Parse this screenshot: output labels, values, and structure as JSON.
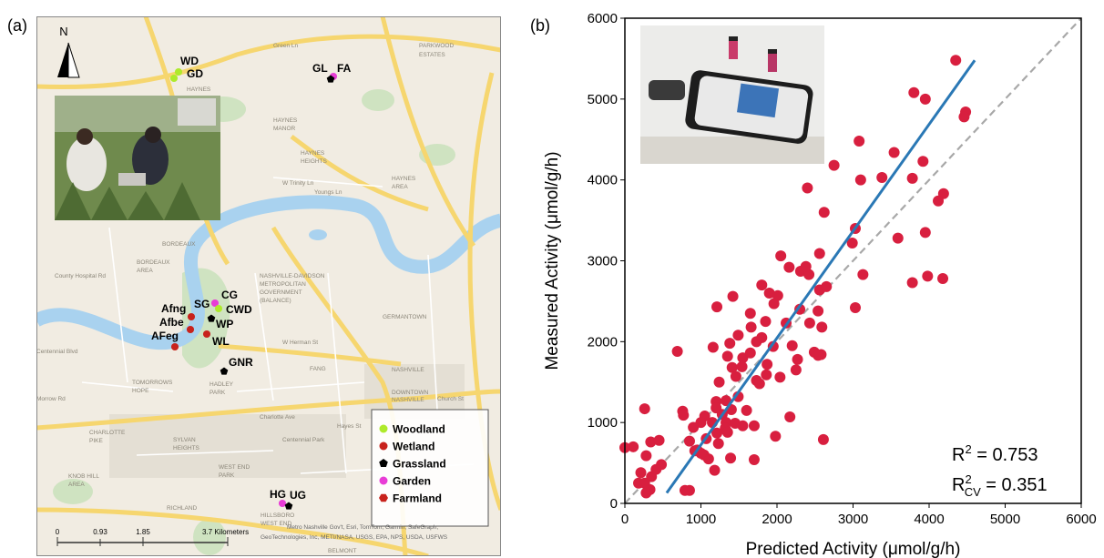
{
  "map": {
    "panel_label": "(a)",
    "north": "N",
    "sites": [
      "WD",
      "GD",
      "GL",
      "FA",
      "Afng",
      "SG",
      "CG",
      "CWD",
      "WP",
      "Afbe",
      "AFeg",
      "WL",
      "GNR",
      "HG",
      "UG"
    ],
    "legend": [
      "Woodland",
      "Wetland",
      "Grassland",
      "Garden",
      "Farmland"
    ],
    "scale": [
      "0",
      "0.93",
      "1.85",
      "3.7 Kilometers"
    ],
    "attribution": [
      "Metro Nashville Gov't, Esri, TomTom, Garmin, SafeGraph,",
      "GeoTechnologies, Inc, METI/NASA, USGS, EPA, NPS, USDA, USFWS"
    ],
    "places": [
      "Green Ln",
      "PARKWOOD",
      "ESTATES",
      "HAYNES",
      "HAYNES",
      "MANOR",
      "HAYNES",
      "HEIGHTS",
      "HAYNES",
      "AREA",
      "W Trinity Ln",
      "Youngs Ln",
      "BORDEAUX",
      "BORDEAUX",
      "AREA",
      "County Hospital Rd",
      "NASHVILLE-DAVIDSON",
      "METROPOLITAN",
      "GOVERNMENT",
      "(BALANCE)",
      "GERMANTOWN",
      "W Herman St",
      "NASHVILLE",
      "FANG",
      "TOMORROWS",
      "HOPE",
      "HADLEY",
      "PARK",
      "Charlotte Ave",
      "CHARLOTTE",
      "PIKE",
      "SYLVAN",
      "HEIGHTS",
      "Centennial Park",
      "KNOB HILL",
      "AREA",
      "RICHLAND",
      "WEST END",
      "PARK",
      "HILLSBORO",
      "WEST END",
      "BELMONT",
      "Centennial Blvd",
      "Morrow Rd",
      "Church St",
      "Hayes St",
      "DOWNTOWN",
      "NASHVILLE"
    ]
  },
  "chart_data": {
    "type": "scatter",
    "panel_label": "(b)",
    "x_label": "Predicted Activity (μmol/g/h)",
    "y_label": "Measured Activity (μmol/g/h)",
    "x": [
      4350,
      3800,
      3950,
      4480,
      4460,
      3080,
      3540,
      3920,
      2750,
      3380,
      3100,
      3780,
      4190,
      4120,
      2400,
      2620,
      3030,
      3950,
      3590,
      2990,
      2050,
      2560,
      3130,
      3980,
      4180,
      3780,
      2160,
      2310,
      2420,
      2380,
      1420,
      1800,
      1900,
      2010,
      2560,
      2650,
      1210,
      1960,
      2300,
      2540,
      3030,
      1650,
      1850,
      2120,
      2430,
      1660,
      2590,
      1490,
      1730,
      1800,
      1160,
      1380,
      1950,
      2200,
      2490,
      2580,
      2540,
      690,
      1350,
      1550,
      1650,
      1410,
      1540,
      2270,
      1870,
      1860,
      2250,
      2040,
      1240,
      1460,
      1730,
      1770,
      1200,
      1330,
      1490,
      1200,
      1400,
      1600,
      2170,
      1280,
      1050,
      760,
      770,
      1000,
      1150,
      1330,
      1550,
      1700,
      1450,
      900,
      1320,
      1210,
      1350,
      1980,
      2610,
      1070,
      1230,
      950,
      850,
      1100,
      1390,
      1700,
      1180,
      1040,
      340,
      450,
      110,
      0,
      260,
      280,
      480,
      210,
      350,
      330,
      280,
      180,
      850,
      790,
      920,
      1000,
      410,
      260
    ],
    "values": [
      5480,
      5080,
      5000,
      4840,
      4780,
      4480,
      4340,
      4230,
      4180,
      4030,
      4000,
      4020,
      3830,
      3740,
      3900,
      3600,
      3400,
      3350,
      3280,
      3220,
      3060,
      3090,
      2830,
      2810,
      2780,
      2730,
      2920,
      2870,
      2830,
      2930,
      2560,
      2700,
      2600,
      2570,
      2640,
      2680,
      2430,
      2470,
      2400,
      2380,
      2420,
      2350,
      2250,
      2230,
      2230,
      2180,
      2180,
      2080,
      2000,
      2050,
      1930,
      1980,
      1940,
      1950,
      1870,
      1840,
      1830,
      1880,
      1820,
      1800,
      1860,
      1680,
      1690,
      1780,
      1720,
      1590,
      1650,
      1560,
      1500,
      1570,
      1520,
      1480,
      1260,
      1270,
      1320,
      1180,
      1160,
      1150,
      1070,
      1100,
      1080,
      1140,
      1090,
      1000,
      1000,
      1000,
      960,
      960,
      990,
      940,
      930,
      870,
      880,
      830,
      790,
      800,
      740,
      660,
      770,
      550,
      560,
      540,
      410,
      600,
      760,
      780,
      700,
      690,
      1170,
      590,
      480,
      380,
      330,
      170,
      130,
      250,
      160,
      160,
      650,
      620,
      420,
      250
    ],
    "color": "#d81f3f",
    "xlim": [
      0,
      6000
    ],
    "ylim": [
      0,
      6000
    ],
    "xticks": [
      0,
      1000,
      2000,
      3000,
      4000,
      5000,
      6000
    ],
    "yticks": [
      0,
      1000,
      2000,
      3000,
      4000,
      5000,
      6000
    ],
    "fit_line": {
      "x": [
        550,
        4600
      ],
      "y": [
        130,
        5480
      ],
      "color": "#2a78b5"
    },
    "reference_line_color": "#a8a8a8",
    "annotations": [
      {
        "base": "R",
        "sup": "2",
        "text": " = 0.753"
      },
      {
        "base": "R",
        "sup": "2",
        "sub": "CV",
        "text": " = 0.351"
      }
    ]
  }
}
